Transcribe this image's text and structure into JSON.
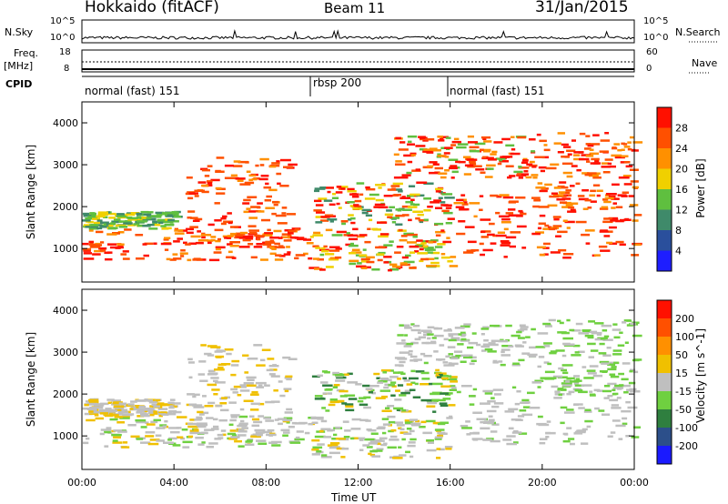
{
  "header": {
    "title": "Hokkaido (fitACF)",
    "beam": "Beam 11",
    "date": "31/Jan/2015"
  },
  "side_labels": {
    "nsky": "N.Sky",
    "nsearch": "N.Search",
    "freq": "Freq.",
    "mhz": "[MHz]",
    "nave": "Nave",
    "cpid": "CPID"
  },
  "strip_ticks": {
    "nsky_top": "10^5",
    "nsky_bottom": "10^0",
    "nsearch_top": "10^5",
    "nsearch_bottom": "10^0",
    "freq_top": "18",
    "freq_bottom": "8",
    "nave_top": "60",
    "nave_bottom": "0"
  },
  "cpid_segments": [
    {
      "label": "normal (fast) 151",
      "start_hour": 0,
      "end_hour": 10
    },
    {
      "label": "rbsp 200",
      "start_hour": 10,
      "end_hour": 16
    },
    {
      "label": "normal (fast) 151",
      "start_hour": 16,
      "end_hour": 24
    }
  ],
  "chart_data": [
    {
      "type": "heatmap",
      "name": "power",
      "ylabel": "Slant Range [km]",
      "ylim": [
        200,
        4500
      ],
      "y_ticks": [
        "1000",
        "2000",
        "3000",
        "4000"
      ],
      "colorbar_label": "Power [dB]",
      "colorbar_ticks": [
        "28",
        "24",
        "20",
        "16",
        "12",
        "8",
        "4"
      ],
      "colors": [
        "#1e1eff",
        "#2a4f9c",
        "#3f8a6a",
        "#5fbf3f",
        "#f0d000",
        "#ff9000",
        "#ff5000",
        "#ff1000"
      ]
    },
    {
      "type": "heatmap",
      "name": "velocity",
      "ylabel": "Slant Range [km]",
      "xlabel": "Time UT",
      "ylim": [
        200,
        4500
      ],
      "y_ticks": [
        "1000",
        "2000",
        "3000",
        "4000"
      ],
      "colorbar_label": "Velocity [m s^-1]",
      "colorbar_ticks": [
        "200",
        "100",
        "50",
        "15",
        "-15",
        "-50",
        "-100",
        "-200"
      ],
      "colors": [
        "#1a1aff",
        "#2c4f8a",
        "#2f7f3f",
        "#6fd040",
        "#bfbfbf",
        "#f0c000",
        "#ff9000",
        "#ff5000",
        "#ff1000"
      ],
      "x_ticks": [
        "00:00",
        "04:00",
        "08:00",
        "12:00",
        "16:00",
        "20:00",
        "00:00"
      ],
      "xlim_hours": [
        0,
        24
      ]
    }
  ]
}
